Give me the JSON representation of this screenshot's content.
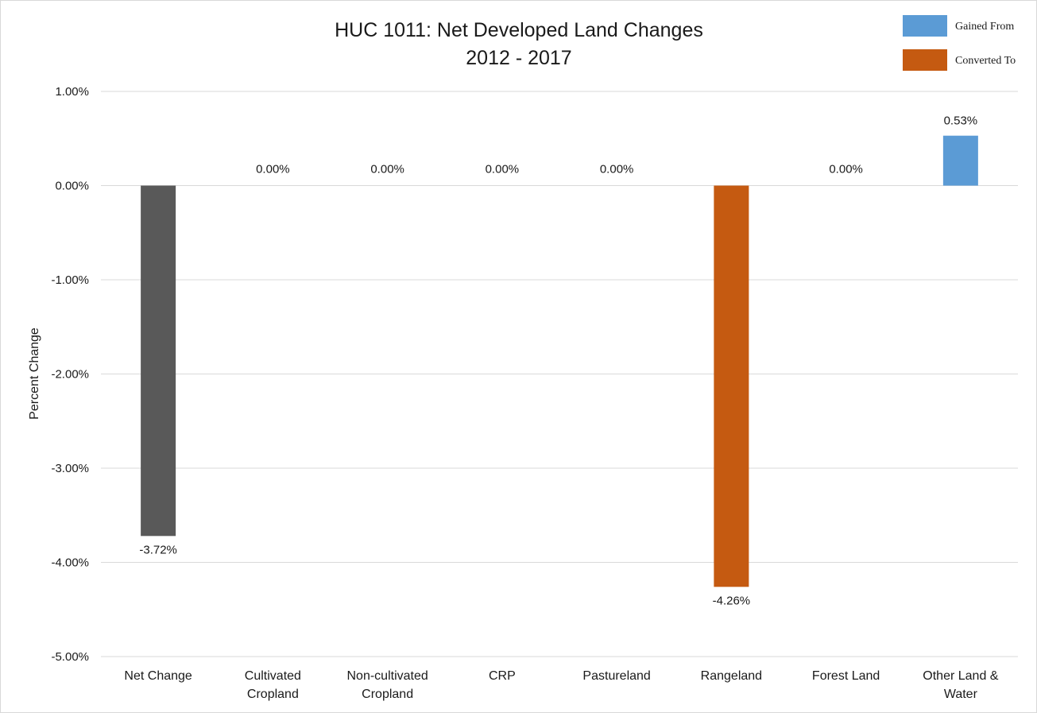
{
  "chart_data": {
    "type": "bar",
    "title": "HUC 1011: Net Developed Land Changes",
    "subtitle": "2012 - 2017",
    "xlabel": "",
    "ylabel": "Percent Change",
    "ylim": [
      -5.0,
      1.0
    ],
    "yticks": [
      1.0,
      0.0,
      -1.0,
      -2.0,
      -3.0,
      -4.0,
      -5.0
    ],
    "ytick_labels": [
      "1.00%",
      "0.00%",
      "-1.00%",
      "-2.00%",
      "-3.00%",
      "-4.00%",
      "-5.00%"
    ],
    "grid": true,
    "legend_position": "top-right",
    "categories": [
      [
        "Net Change"
      ],
      [
        "Cultivated",
        "Cropland"
      ],
      [
        "Non-cultivated",
        "Cropland"
      ],
      [
        "CRP"
      ],
      [
        "Pastureland"
      ],
      [
        "Rangeland"
      ],
      [
        "Forest Land"
      ],
      [
        "Other Land &",
        "Water"
      ]
    ],
    "values": [
      -3.72,
      0.0,
      0.0,
      0.0,
      0.0,
      -4.26,
      0.0,
      0.53
    ],
    "data_labels": [
      "-3.72%",
      "0.00%",
      "0.00%",
      "0.00%",
      "0.00%",
      "-4.26%",
      "0.00%",
      "0.53%"
    ],
    "bar_colors": [
      "#595959",
      "#5b9bd5",
      "#5b9bd5",
      "#5b9bd5",
      "#5b9bd5",
      "#c55a11",
      "#5b9bd5",
      "#5b9bd5"
    ],
    "legend": [
      {
        "name": "Gained From",
        "color": "#5b9bd5"
      },
      {
        "name": "Converted To",
        "color": "#c55a11"
      }
    ]
  }
}
